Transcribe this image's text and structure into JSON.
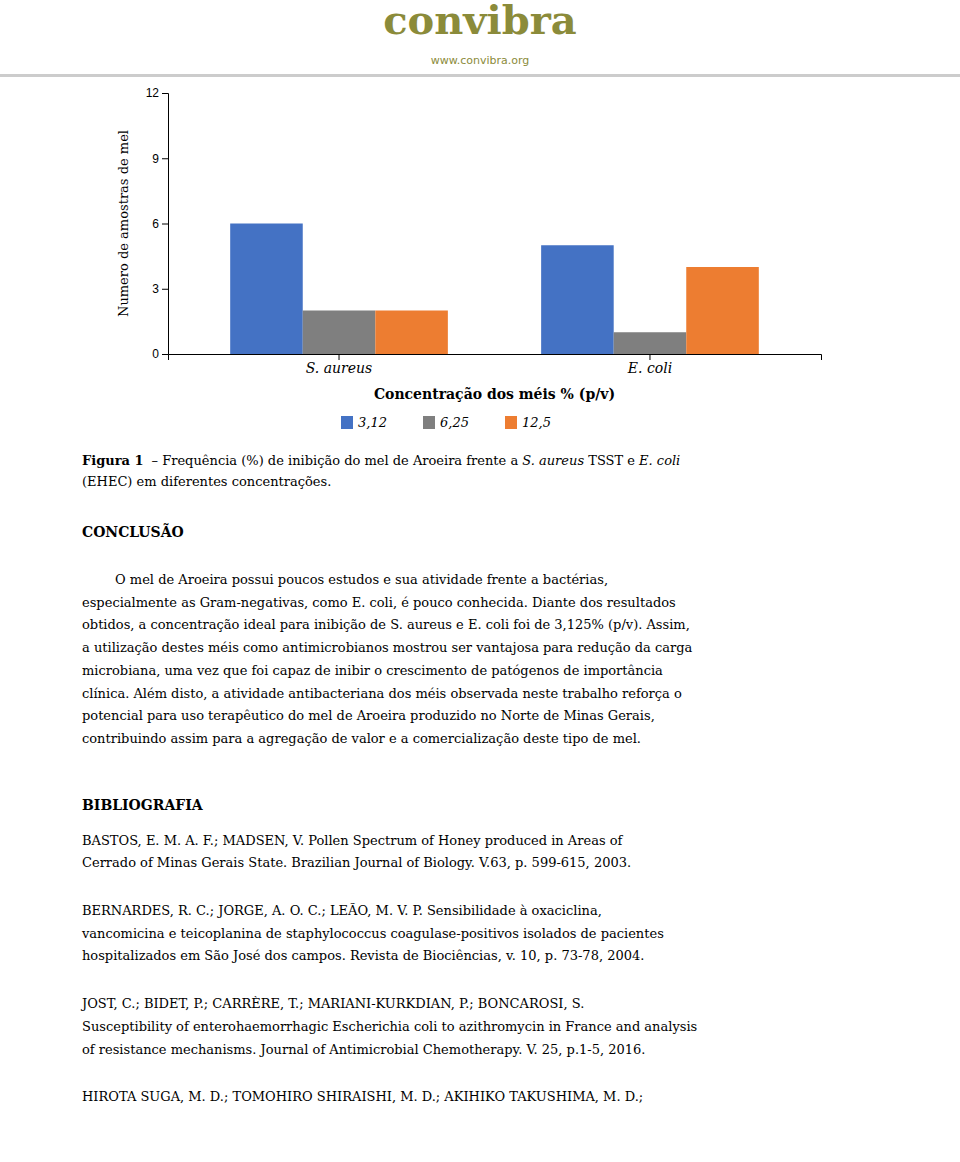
{
  "background_color": "#ffffff",
  "header": {
    "title": "convibra",
    "subtitle": "www.convibra.org",
    "color": "#8B8B3A",
    "separator_color": "#CCCCCC"
  },
  "chart_data": {
    "type": "bar",
    "categories": [
      "S. aureus",
      "E. coli"
    ],
    "series": [
      {
        "name": "3,12",
        "color": "#4472C4",
        "values": [
          6,
          5
        ]
      },
      {
        "name": "6,25",
        "color": "#7F7F7F",
        "values": [
          2,
          1
        ]
      },
      {
        "name": "12,5",
        "color": "#ED7D31",
        "values": [
          2,
          4
        ]
      }
    ],
    "xlabel": "Concentração dos méis % (p/v)",
    "ylabel": "Numero de amostras de mel",
    "ylim": [
      0,
      12
    ],
    "yticks": [
      0,
      3,
      6,
      9,
      12
    ],
    "grid": false,
    "legend": "bottom"
  },
  "caption": {
    "lines": [
      [
        {
          "text": "Figura 1",
          "style": "bold"
        },
        {
          "text": "– Frequência (%) de inibição do mel de Aroeira frente a ",
          "style": "normal"
        },
        {
          "text": "S. aureus",
          "style": "italic"
        },
        {
          "text": " TSST e ",
          "style": "normal"
        },
        {
          "text": "E. coli",
          "style": "italic"
        }
      ],
      [
        {
          "text": "(EHEC) em diferentes concentrações.",
          "style": "normal"
        }
      ]
    ]
  },
  "conclusion": {
    "heading": "CONCLUSÃO",
    "lines": [
      "        O mel de Aroeira possui poucos estudos e sua atividade frente a bactérias,",
      "especialmente as Gram-negativas, como E. coli, é pouco conhecida. Diante dos resultados",
      "obtidos, a concentração ideal para inibição de S. aureus e E. coli foi de 3,125% (p/v). Assim,",
      "a utilização destes méis como antimicrobianos mostrou ser vantajosa para redução da carga",
      "microbiana, uma vez que foi capaz de inibir o crescimento de patógenos de importância",
      "clínica. Além disto, a atividade antibacteriana dos méis observada neste trabalho reforça o",
      "potencial para uso terapêutico do mel de Aroeira produzido no Norte de Minas Gerais,",
      "contribuindo assim para a agregação de valor e a comercialização deste tipo de mel."
    ]
  },
  "bibliography": {
    "heading": "BIBLIOGRAFIA",
    "references": [
      [
        "BASTOS, E. M. A. F.; MADSEN, V. Pollen Spectrum of Honey produced in Areas of",
        "Cerrado of Minas Gerais State. Brazilian Journal of Biology. V.63, p. 599-615, 2003."
      ],
      [
        "BERNARDES, R. C.; JORGE, A. O. C.; LEÃO, M. V. P. Sensibilidade à oxaciclina,",
        "vancomicina e teicoplanina de staphylococcus coagulase-positivos isolados de pacientes",
        "hospitalizados em São José dos campos. Revista de Biociências, v. 10, p. 73-78, 2004."
      ],
      [
        "JOST, C.; BIDET, P.; CARRÈRE, T.; MARIANI-KURKDIAN, P.; BONCAROSI, S.",
        "Susceptibility of enterohaemorrhagic Escherichia coli to azithromycin in France and analysis",
        "of resistance mechanisms. Journal of Antimicrobial Chemotherapy. V. 25, p.1-5, 2016."
      ],
      [
        "HIROTA SUGA, M. D.; TOMOHIRO SHIRAISHI, M. D.; AKIHIKO TAKUSHIMA, M. D.;"
      ]
    ]
  }
}
